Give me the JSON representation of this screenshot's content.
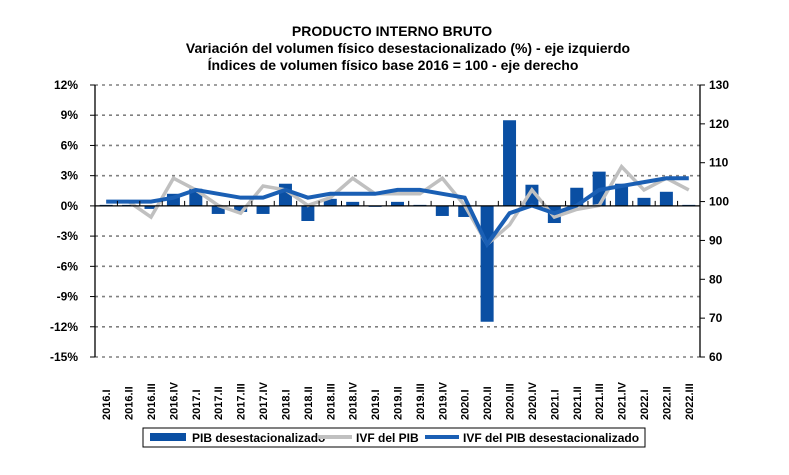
{
  "chart_data": {
    "type": "bar+line",
    "title": "PRODUCTO INTERNO BRUTO",
    "subtitle_1": "Variación del volumen físico desestacionalizado (%) - eje izquierdo",
    "subtitle_2": "Índices de volumen físico base 2016 = 100 - eje derecho",
    "categories": [
      "2016.I",
      "2016.II",
      "2016.III",
      "2016.IV",
      "2017.I",
      "2017.II",
      "2017.III",
      "2017.IV",
      "2018.I",
      "2018.II",
      "2018.III",
      "2018.IV",
      "2019.I",
      "2019.II",
      "2019.III",
      "2019.IV",
      "2020.I",
      "2020.II",
      "2020.III",
      "2020.IV",
      "2021.I",
      "2021.II",
      "2021.III",
      "2021.IV",
      "2022.I",
      "2022.II",
      "2022.III"
    ],
    "y_left": {
      "ylim": [
        -15,
        12
      ],
      "ticks": [
        12,
        9,
        6,
        3,
        0,
        -3,
        -6,
        -9,
        -12,
        -15
      ],
      "tick_labels": [
        "12%",
        "9%",
        "6%",
        "3%",
        "0%",
        "-3%",
        "-6%",
        "-9%",
        "-12%",
        "-15%"
      ],
      "grid": true
    },
    "y_right": {
      "ylim": [
        60,
        130
      ],
      "ticks": [
        130,
        120,
        110,
        100,
        90,
        80,
        70,
        60
      ],
      "tick_labels": [
        "130",
        "120",
        "110",
        "100",
        "90",
        "80",
        "70",
        "60"
      ]
    },
    "series": [
      {
        "name": "PIB desestacionalizado",
        "type": "bar",
        "axis": "left",
        "color": "#0a4fa3",
        "values": [
          0.1,
          0.1,
          -0.3,
          1.2,
          1.7,
          -0.8,
          -0.6,
          -0.8,
          2.2,
          -1.5,
          0.7,
          0.4,
          0.0,
          0.4,
          0.1,
          -1.0,
          -1.1,
          -11.5,
          8.5,
          2.1,
          -1.7,
          1.8,
          3.4,
          2.2,
          0.8,
          1.4,
          0.1
        ]
      },
      {
        "name": "IVF del PIB",
        "type": "line",
        "axis": "right",
        "color": "#c0c0c0",
        "values": [
          100,
          100,
          96,
          106,
          103,
          99,
          97,
          104,
          103,
          99,
          101,
          106,
          102,
          102,
          102,
          106,
          99,
          89,
          94,
          103,
          96,
          98,
          99,
          109,
          103,
          106,
          103
        ]
      },
      {
        "name": "IVF del PIB desestacionalizado",
        "type": "line",
        "axis": "right",
        "color": "#1a5fb4",
        "values": [
          100,
          100,
          100,
          101,
          103,
          102,
          101,
          101,
          103,
          101,
          102,
          102,
          102,
          103,
          103,
          102,
          101,
          89,
          97,
          99,
          97,
          99,
          103,
          104,
          105,
          106,
          106
        ]
      }
    ],
    "legend": {
      "position": "bottom",
      "entries": [
        "PIB desestacionalizado",
        "IVF del PIB",
        "IVF del PIB desestacionalizado"
      ]
    }
  }
}
